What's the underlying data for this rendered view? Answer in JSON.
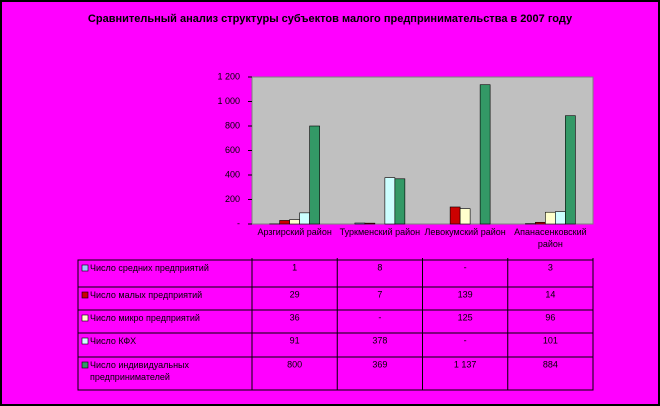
{
  "chart_data": {
    "type": "bar",
    "title": "Сравнительный анализ структуры субъектов малого предпринимательства в 2007 году",
    "categories": [
      "Арзгирский район",
      "Туркменский район",
      "Левокумский район",
      "Апанасенковский район"
    ],
    "series": [
      {
        "name": "Число средних предприятий",
        "color": "#99ccff",
        "values": [
          1,
          8,
          null,
          3
        ],
        "value_labels": [
          "1",
          "8",
          "-",
          "3"
        ]
      },
      {
        "name": "Число малых предприятий",
        "color": "#cc0000",
        "values": [
          29,
          7,
          139,
          14
        ],
        "value_labels": [
          "29",
          "7",
          "139",
          "14"
        ]
      },
      {
        "name": "Число микро предприятий",
        "color": "#ffffcc",
        "values": [
          36,
          null,
          125,
          96
        ],
        "value_labels": [
          "36",
          "-",
          "125",
          "96"
        ]
      },
      {
        "name": "Число КФХ",
        "color": "#ccffff",
        "values": [
          91,
          378,
          null,
          101
        ],
        "value_labels": [
          "91",
          "378",
          "-",
          "101"
        ]
      },
      {
        "name": "Число индивидуальных предпринимателей",
        "color": "#339966",
        "values": [
          800,
          369,
          1137,
          884
        ],
        "value_labels": [
          "800",
          "369",
          "1 137",
          "884"
        ]
      }
    ],
    "ylim": [
      0,
      1200
    ],
    "yticks": [
      {
        "value": 0,
        "label": "-"
      },
      200,
      400,
      600,
      800,
      {
        "value": 1000,
        "label": "1 000"
      },
      {
        "value": 1200,
        "label": "1 200"
      }
    ],
    "plot_background": "#c0c0c0",
    "background": "#ff00ff"
  }
}
